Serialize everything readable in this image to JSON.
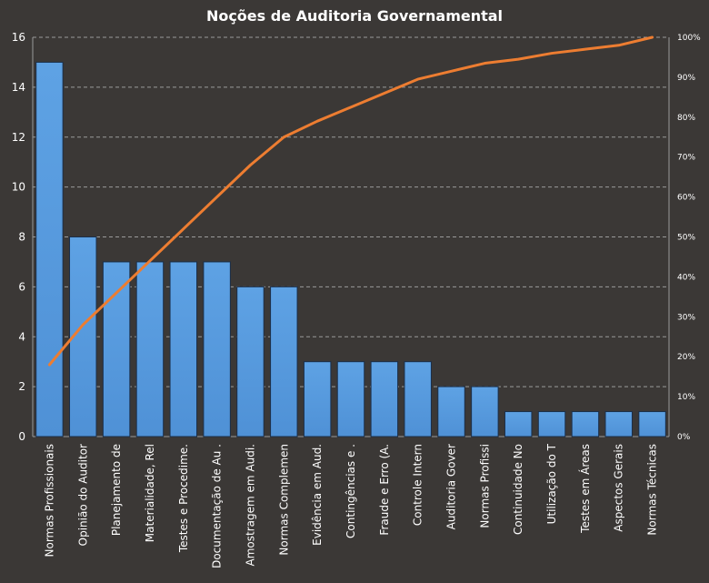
{
  "chart_data": {
    "type": "bar",
    "title": "Noções de Auditoria  Governamental",
    "categories": [
      "Normas Profissionais",
      "Opinião do Auditor",
      "Planejamento de",
      "Materialidade, Rel",
      "Testes e Procedime.",
      "Documentação de Au .",
      "Amostragem em Audi.",
      "Normas Complemen",
      "Evidência em Aud.",
      "Contingências e .",
      "Fraude  e Erro (A.",
      "Controle Intern",
      "Auditoria  Gover",
      "Normas Profissi",
      "Continuidade No",
      "Utilização do T",
      "Testes em Áreas",
      "Aspectos Gerais",
      "Normas Técnicas"
    ],
    "series": [
      {
        "type": "bar",
        "values": [
          15,
          8,
          7,
          7,
          7,
          7,
          6,
          6,
          3,
          3,
          3,
          3,
          2,
          2,
          1,
          1,
          1,
          1,
          1
        ]
      },
      {
        "type": "line",
        "axis": "right",
        "values": [
          18,
          28,
          36,
          44,
          52,
          60,
          68,
          75,
          79,
          82.5,
          86,
          89.5,
          91.5,
          93.5,
          94.5,
          96,
          97,
          98,
          100
        ]
      }
    ],
    "ylim": [
      0,
      16
    ],
    "yticks": [
      "0",
      "2",
      "4",
      "6",
      "8",
      "10",
      "12",
      "14",
      "16"
    ],
    "y2lim": [
      0,
      100
    ],
    "y2ticks": [
      "0%",
      "10%",
      "20%",
      "30%",
      "40%",
      "50%",
      "60%",
      "70%",
      "80%",
      "90%",
      "100%"
    ],
    "grid": "horizontal dashed",
    "legend": "none",
    "colors": {
      "background": "#3b3836",
      "bar_fill": "#4f91d6",
      "bar_stroke": "#1b2f4a",
      "line": "#ed7d31",
      "grid": "#9a9a9a",
      "text": "#ffffff"
    }
  }
}
